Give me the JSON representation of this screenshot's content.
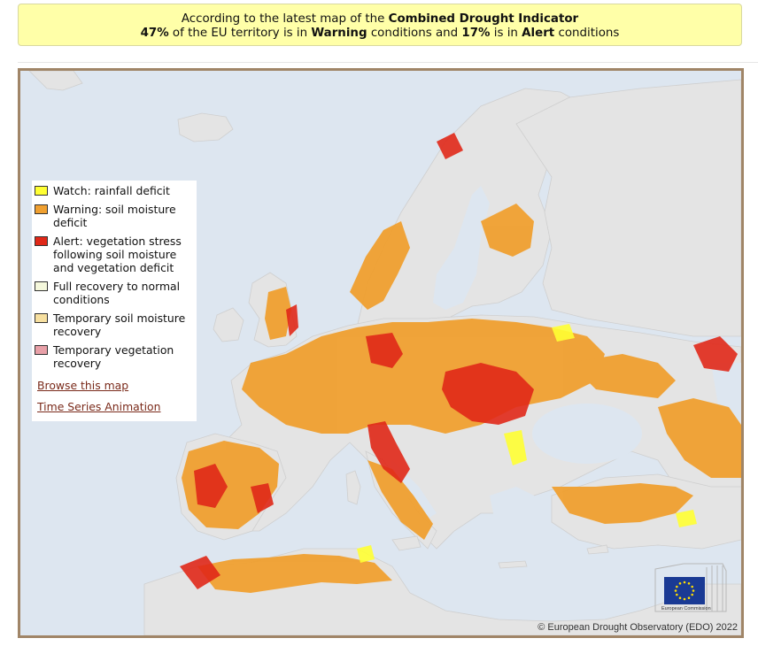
{
  "banner": {
    "line1_prefix": "According to the latest map of the ",
    "line1_bold": "Combined Drought Indicator",
    "line2_pct_warning": "47%",
    "line2_mid1": " of the EU territory is in ",
    "line2_warning": "Warning",
    "line2_mid2": " conditions and ",
    "line2_pct_alert": "17%",
    "line2_mid3": " is in ",
    "line2_alert": "Alert",
    "line2_suffix": " conditions"
  },
  "legend": {
    "items": [
      {
        "label": "Watch: rainfall deficit",
        "color": "#ffff33"
      },
      {
        "label": "Warning: soil moisture deficit",
        "color": "#f0a030"
      },
      {
        "label": "Alert: vegetation stress following soil moisture and vegetation deficit",
        "color": "#e02818"
      },
      {
        "label": "Full recovery to normal conditions",
        "color": "#f5f8dc"
      },
      {
        "label": "Temporary soil moisture recovery",
        "color": "#f7e0a0"
      },
      {
        "label": "Temporary vegetation recovery",
        "color": "#e8a0a8"
      }
    ],
    "browse_link": "Browse this map",
    "animation_link": "Time Series Animation"
  },
  "map": {
    "copyright": "© European Drought Observatory (EDO) 2022",
    "logo_caption": "European Commission",
    "sea_color": "#dde6f0",
    "land_color": "#e4e4e4"
  }
}
